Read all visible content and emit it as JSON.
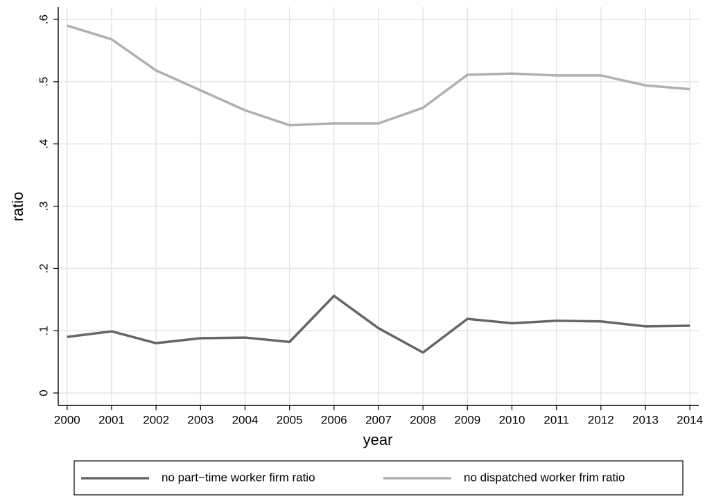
{
  "chart_data": {
    "type": "line",
    "xlabel": "year",
    "ylabel": "ratio",
    "x": [
      2000,
      2001,
      2002,
      2003,
      2004,
      2005,
      2006,
      2007,
      2008,
      2009,
      2010,
      2011,
      2012,
      2013,
      2014
    ],
    "series": [
      {
        "name": "no part−time worker firm ratio",
        "color": "#666666",
        "values": [
          0.09,
          0.099,
          0.08,
          0.088,
          0.089,
          0.082,
          0.156,
          0.104,
          0.065,
          0.119,
          0.112,
          0.116,
          0.115,
          0.107,
          0.108
        ]
      },
      {
        "name": "no dispatched worker frim ratio",
        "color": "#b0b0b0",
        "values": [
          0.59,
          0.568,
          0.518,
          0.486,
          0.454,
          0.43,
          0.433,
          0.433,
          0.458,
          0.511,
          0.513,
          0.51,
          0.51,
          0.494,
          0.488
        ]
      }
    ],
    "xlim": [
      1999.8,
      2014.2
    ],
    "xticks": [
      2000,
      2001,
      2002,
      2003,
      2004,
      2005,
      2006,
      2007,
      2008,
      2009,
      2010,
      2011,
      2012,
      2013,
      2014
    ],
    "ylim": [
      -0.02,
      0.62
    ],
    "yticks": [
      0,
      {
        "value": 0.1,
        "label": ".1"
      },
      {
        "value": 0.2,
        "label": ".2"
      },
      {
        "value": 0.3,
        "label": ".3"
      },
      {
        "value": 0.4,
        "label": ".4"
      },
      {
        "value": 0.5,
        "label": ".5"
      },
      {
        "value": 0.6,
        "label": ".6"
      }
    ],
    "grid": true,
    "legend": "bottom"
  }
}
